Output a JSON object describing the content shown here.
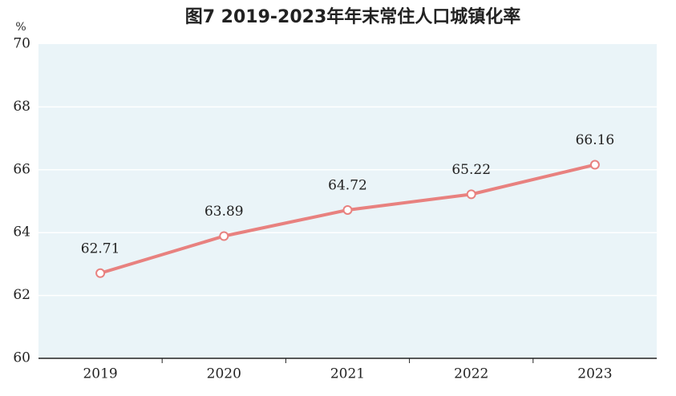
{
  "chart_data": {
    "type": "line",
    "title": "图7  2019-2023年年末常住人口城镇化率",
    "ylabel": "%",
    "categories": [
      "2019",
      "2020",
      "2021",
      "2022",
      "2023"
    ],
    "series": [
      {
        "color": "#e8817f",
        "values": [
          62.71,
          63.89,
          64.72,
          65.22,
          66.16
        ]
      }
    ],
    "ylim": [
      60,
      70
    ],
    "yticks": [
      60,
      62,
      64,
      66,
      68,
      70
    ],
    "grid": true,
    "data_labels": true
  }
}
